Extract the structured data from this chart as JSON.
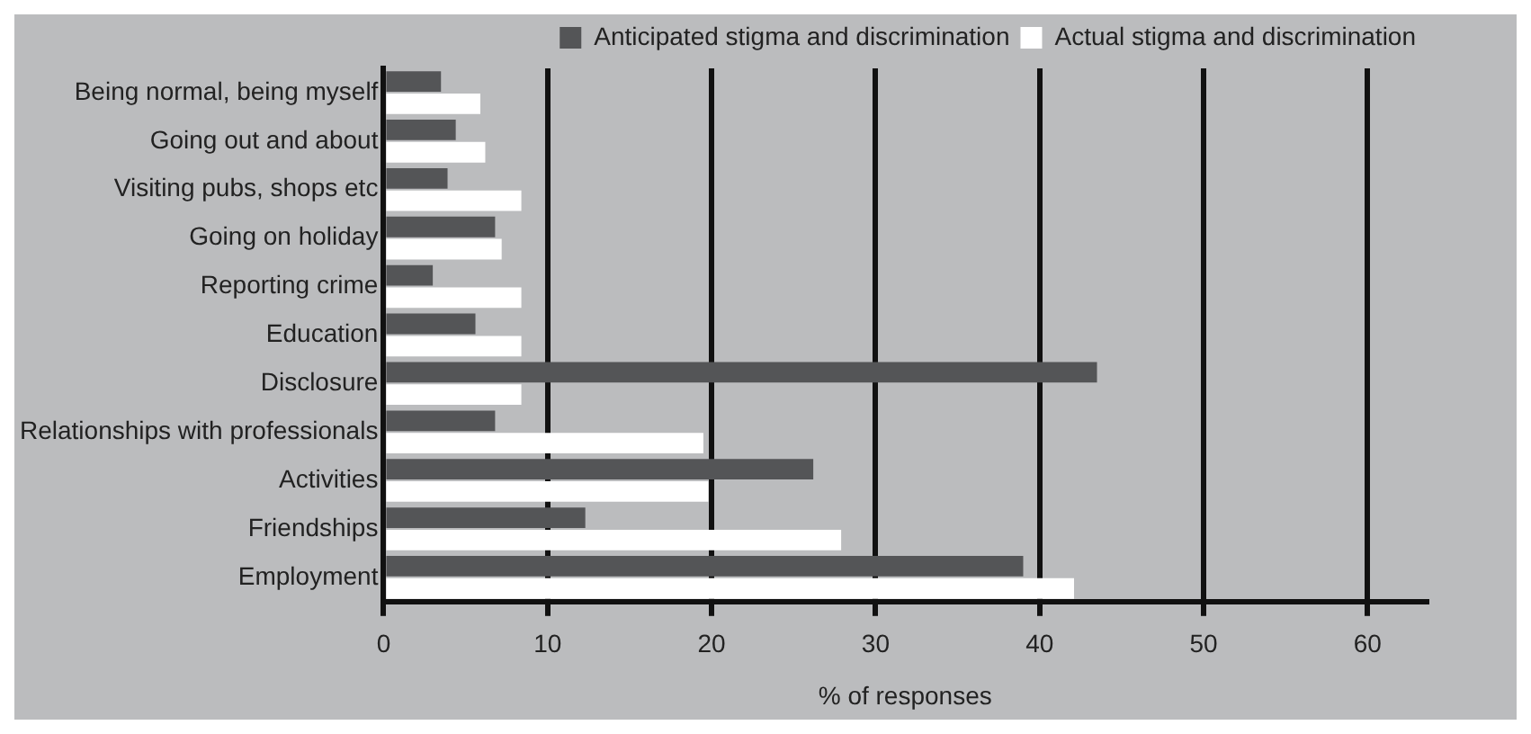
{
  "chart_data": {
    "type": "bar",
    "orientation": "horizontal",
    "xlabel": "% of responses",
    "categories": [
      "Being normal, being myself",
      "Going out and about",
      "Visiting pubs, shops etc",
      "Going on holiday",
      "Reporting crime",
      "Education",
      "Disclosure",
      "Relationships with professionals",
      "Activities",
      "Friendships",
      "Employment"
    ],
    "series": [
      {
        "name": "Anticipated stigma and discrimination",
        "color": "#545557",
        "values": [
          3.5,
          4.4,
          3.9,
          6.8,
          3.0,
          5.6,
          43.5,
          6.8,
          26.2,
          12.3,
          39.0
        ]
      },
      {
        "name": "Actual stigma and discrimination",
        "color": "#ffffff",
        "values": [
          5.9,
          6.2,
          8.4,
          7.2,
          8.4,
          8.4,
          8.4,
          19.5,
          19.8,
          27.9,
          42.1
        ]
      }
    ],
    "xlim": [
      0,
      63.6
    ],
    "xticks": [
      0,
      10,
      20,
      30,
      40,
      50,
      60
    ],
    "grid": "x",
    "legend": "top right"
  }
}
